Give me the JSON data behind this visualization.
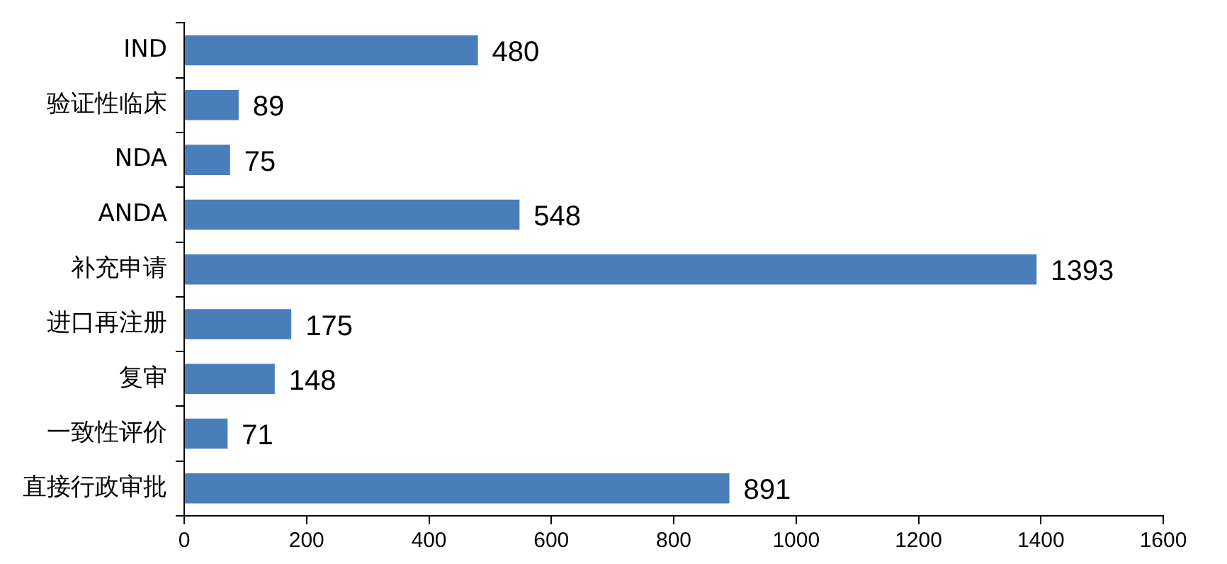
{
  "chart_data": {
    "type": "bar",
    "orientation": "horizontal",
    "categories": [
      "IND",
      "验证性临床",
      "NDA",
      "ANDA",
      "补充申请",
      "进口再注册",
      "复审",
      "一致性评价",
      "直接行政审批"
    ],
    "values": [
      480,
      89,
      75,
      548,
      1393,
      175,
      148,
      71,
      891
    ],
    "color": "#4a7ebb",
    "xlim": [
      0,
      1600
    ],
    "xticks": [
      0,
      200,
      400,
      600,
      800,
      1000,
      1200,
      1400,
      1600
    ],
    "grid": false,
    "legend": false,
    "data_labels": true
  }
}
